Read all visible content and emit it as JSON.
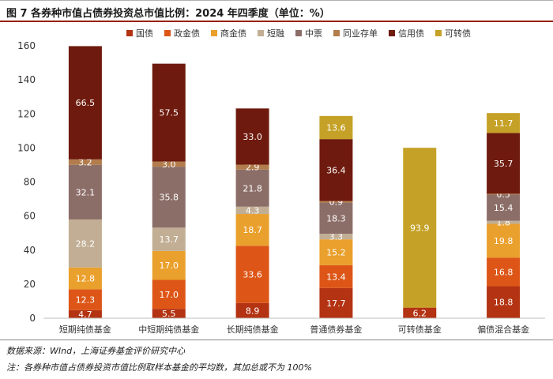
{
  "header": {
    "title": "图 7 各券种市值占债券投资总市值比例：2024 年四季度（单位：%）"
  },
  "footer": {
    "source": "数据来源：WInd，上海证券基金评价研究中心",
    "note": "注：各券种市值占债券投资市值比例取样本基金的平均数，其加总或不为 100%"
  },
  "chart_data": {
    "type": "bar",
    "stacked": true,
    "title": "各券种市值占债券投资总市值比例：2024 年四季度（单位：%）",
    "xlabel": "",
    "ylabel": "",
    "ylim": [
      0,
      160
    ],
    "yticks": [
      0,
      20,
      40,
      60,
      80,
      100,
      120,
      140,
      160
    ],
    "grid": false,
    "legend_position": "top",
    "categories": [
      "短期纯债基金",
      "中短期纯债基金",
      "长期纯债基金",
      "普通债券基金",
      "可转债基金",
      "偏债混合基金"
    ],
    "series": [
      {
        "name": "国债",
        "color": "#b33312",
        "values": [
          4.7,
          5.5,
          8.9,
          17.7,
          6.2,
          18.8
        ]
      },
      {
        "name": "政金债",
        "color": "#dd5617",
        "values": [
          12.3,
          17.0,
          33.6,
          13.4,
          0,
          16.8
        ]
      },
      {
        "name": "商金债",
        "color": "#eaa02c",
        "values": [
          12.8,
          17.0,
          18.7,
          15.2,
          0,
          19.8
        ]
      },
      {
        "name": "短融",
        "color": "#c1ae94",
        "values": [
          28.2,
          13.7,
          4.3,
          3.3,
          0,
          1.8
        ]
      },
      {
        "name": "中票",
        "color": "#8c6e68",
        "values": [
          32.1,
          35.8,
          21.8,
          18.3,
          0,
          15.4
        ]
      },
      {
        "name": "同业存单",
        "color": "#b27c4c",
        "values": [
          3.2,
          3.0,
          2.9,
          0.9,
          0,
          0.5
        ]
      },
      {
        "name": "信用债",
        "color": "#6e1a0e",
        "values": [
          66.5,
          57.5,
          33.0,
          36.4,
          0,
          35.7
        ]
      },
      {
        "name": "可转债",
        "color": "#c5a227",
        "values": [
          0,
          0,
          0,
          13.6,
          93.9,
          11.7
        ]
      }
    ]
  }
}
